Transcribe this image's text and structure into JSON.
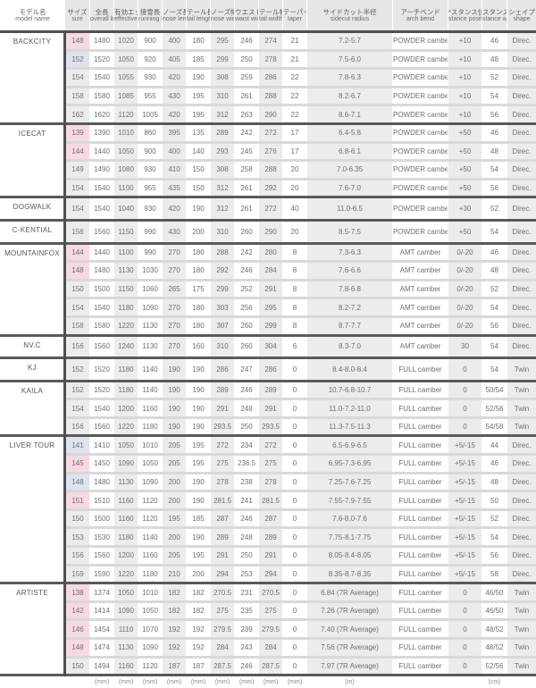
{
  "table": {
    "headers": [
      {
        "jp": "モデル名",
        "en": "model name"
      },
      {
        "jp": "サイズ",
        "en": "size"
      },
      {
        "jp": "全長",
        "en": "overall length"
      },
      {
        "jp": "有効エッジ",
        "en": "effective edge"
      },
      {
        "jp": "接雪長",
        "en": "running length"
      },
      {
        "jp": "ノーズ長",
        "en": "nose length"
      },
      {
        "jp": "テール長",
        "en": "tail length"
      },
      {
        "jp": "ノーズ幅",
        "en": "nose width"
      },
      {
        "jp": "ウエスト幅",
        "en": "waist width"
      },
      {
        "jp": "テール幅",
        "en": "tail width"
      },
      {
        "jp": "テーパー",
        "en": "taper"
      },
      {
        "jp": "サイドカット半径",
        "en": "sidecut radius"
      },
      {
        "jp": "アーチベンド",
        "en": "arch bend"
      },
      {
        "jp": "*スタンス位置",
        "en": "stance position"
      },
      {
        "jp": "スタンス幅",
        "en": "stance width"
      },
      {
        "jp": "シェイプ",
        "en": "shape"
      }
    ],
    "units": [
      "",
      "",
      "(mm)",
      "(mm)",
      "(mm)",
      "(mm)",
      "(mm)",
      "(mm)",
      "(mm)",
      "(mm)",
      "(mm)",
      "(m)",
      "",
      "",
      "(cm)",
      ""
    ],
    "colors": {
      "header_bg": "#e7e7e7",
      "shade_bg": "#ececec",
      "pink_highlight": "#f6d9e1",
      "blue_highlight": "#dde4f0",
      "section_line": "#5a5a5a",
      "row_line": "#d9d9d9"
    },
    "sections": [
      {
        "model": "BACKCITY",
        "rows": [
          {
            "size": "148",
            "highlight": "pink",
            "values": [
              "1480",
              "1020",
              "900",
              "400",
              "180",
              "295",
              "246",
              "274",
              "21",
              "7.2-5.7",
              "POWDER camber",
              "+10",
              "46",
              "Direc."
            ]
          },
          {
            "size": "152",
            "highlight": "blue",
            "values": [
              "1520",
              "1050",
              "920",
              "405",
              "185",
              "299",
              "250",
              "278",
              "21",
              "7.5-6.0",
              "POWDER camber",
              "+10",
              "48",
              "Direc."
            ]
          },
          {
            "size": "154",
            "highlight": "",
            "values": [
              "1540",
              "1055",
              "930",
              "420",
              "190",
              "308",
              "259",
              "286",
              "22",
              "7.8-6.3",
              "POWDER camber",
              "+10",
              "52",
              "Direc."
            ]
          },
          {
            "size": "158",
            "highlight": "",
            "values": [
              "1580",
              "1085",
              "955",
              "430",
              "195",
              "310",
              "261",
              "288",
              "22",
              "8.2-6.7",
              "POWDER camber",
              "+10",
              "54",
              "Direc."
            ]
          },
          {
            "size": "162",
            "highlight": "",
            "values": [
              "1620",
              "1120",
              "1005",
              "420",
              "195",
              "312",
              "263",
              "290",
              "22",
              "8.6-7.1",
              "POWDER camber",
              "+10",
              "56",
              "Direc."
            ]
          }
        ]
      },
      {
        "model": "ICECAT",
        "rows": [
          {
            "size": "139",
            "highlight": "pink",
            "values": [
              "1390",
              "1010",
              "860",
              "395",
              "135",
              "289",
              "242",
              "272",
              "17",
              "6.4-5.8",
              "POWDER camber",
              "+50",
              "46",
              "Direc."
            ]
          },
          {
            "size": "144",
            "highlight": "pink",
            "values": [
              "1440",
              "1050",
              "900",
              "400",
              "140",
              "293",
              "245",
              "276",
              "17",
              "6.8-6.1",
              "POWDER camber",
              "+50",
              "48",
              "Direc."
            ]
          },
          {
            "size": "149",
            "highlight": "",
            "values": [
              "1490",
              "1080",
              "930",
              "410",
              "150",
              "308",
              "258",
              "288",
              "20",
              "7.0-6.35",
              "POWDER camber",
              "+50",
              "54",
              "Direc."
            ]
          },
          {
            "size": "154",
            "highlight": "",
            "values": [
              "1540",
              "1100",
              "955",
              "435",
              "150",
              "312",
              "261",
              "292",
              "20",
              "7.6-7.0",
              "POWDER camber",
              "+50",
              "56",
              "Direc."
            ]
          }
        ]
      },
      {
        "model": "DOGWALK",
        "rows": [
          {
            "size": "154",
            "highlight": "",
            "values": [
              "1540",
              "1040",
              "930",
              "420",
              "190",
              "312",
              "261",
              "272",
              "40",
              "11.0-6.5",
              "POWDER camber",
              "+30",
              "52",
              "Direc."
            ]
          }
        ]
      },
      {
        "model": "C-KENTIAL",
        "rows": [
          {
            "size": "156",
            "highlight": "",
            "values": [
              "1560",
              "1150",
              "990",
              "430",
              "200",
              "310",
              "260",
              "290",
              "20",
              "8.5-7.5",
              "POWDER camber",
              "+50",
              "54",
              "Direc."
            ]
          }
        ]
      },
      {
        "model": "MOUNTAINFOX",
        "rows": [
          {
            "size": "144",
            "highlight": "pink",
            "values": [
              "1440",
              "1100",
              "990",
              "270",
              "180",
              "288",
              "242",
              "280",
              "8",
              "7.3-6.3",
              "AMT camber",
              "0/-20",
              "46",
              "Direc."
            ]
          },
          {
            "size": "148",
            "highlight": "pink",
            "values": [
              "1480",
              "1130",
              "1030",
              "270",
              "180",
              "292",
              "246",
              "284",
              "8",
              "7.6-6.6",
              "AMT camber",
              "0/-20",
              "48",
              "Direc."
            ]
          },
          {
            "size": "150",
            "highlight": "",
            "values": [
              "1500",
              "1150",
              "1060",
              "265",
              "175",
              "299",
              "252",
              "291",
              "8",
              "7.8-6.8",
              "AMT camber",
              "0/-20",
              "52",
              "Direc."
            ]
          },
          {
            "size": "154",
            "highlight": "",
            "values": [
              "1540",
              "1180",
              "1090",
              "270",
              "180",
              "303",
              "256",
              "295",
              "8",
              "8.2-7.2",
              "AMT camber",
              "0/-20",
              "54",
              "Direc."
            ]
          },
          {
            "size": "158",
            "highlight": "",
            "values": [
              "1580",
              "1220",
              "1130",
              "270",
              "180",
              "307",
              "260",
              "299",
              "8",
              "8.7-7.7",
              "AMT camber",
              "0/-20",
              "56",
              "Direc."
            ]
          }
        ]
      },
      {
        "model": "NV.C",
        "rows": [
          {
            "size": "156",
            "highlight": "",
            "values": [
              "1560",
              "1240",
              "1130",
              "270",
              "160",
              "310",
              "260",
              "304",
              "6",
              "8.3-7.0",
              "AMT camber",
              "30",
              "54",
              "Direc."
            ]
          }
        ]
      },
      {
        "model": "KJ",
        "rows": [
          {
            "size": "152",
            "highlight": "",
            "values": [
              "1520",
              "1180",
              "1140",
              "190",
              "190",
              "286",
              "247",
              "286",
              "0",
              "8.4-8.0-8.4",
              "FULL camber",
              "0",
              "54",
              "Twin"
            ]
          }
        ]
      },
      {
        "model": "KAILA",
        "rows": [
          {
            "size": "152",
            "highlight": "",
            "values": [
              "1520",
              "1180",
              "1140",
              "190",
              "190",
              "289",
              "246",
              "289",
              "0",
              "10.7-6.8-10.7",
              "FULL camber",
              "0",
              "50/54",
              "Twin"
            ]
          },
          {
            "size": "154",
            "highlight": "",
            "values": [
              "1540",
              "1200",
              "1160",
              "190",
              "190",
              "291",
              "248",
              "291",
              "0",
              "11.0-7.2-11.0",
              "FULL camber",
              "0",
              "52/56",
              "Twin"
            ]
          },
          {
            "size": "156",
            "highlight": "",
            "values": [
              "1560",
              "1220",
              "1180",
              "190",
              "190",
              "293.5",
              "250",
              "293.5",
              "0",
              "11.3-7.5-11.3",
              "FULL camber",
              "0",
              "54/58",
              "Twin"
            ]
          }
        ]
      },
      {
        "model": "LIVER TOUR",
        "rows": [
          {
            "size": "141",
            "highlight": "blue",
            "values": [
              "1410",
              "1050",
              "1010",
              "205",
              "195",
              "272",
              "234",
              "272",
              "0",
              "6.5-6.9-6.5",
              "FULL camber",
              "+5/-15",
              "44",
              "Direc."
            ]
          },
          {
            "size": "145",
            "highlight": "pink",
            "values": [
              "1450",
              "1090",
              "1050",
              "205",
              "195",
              "275",
              "236.5",
              "275",
              "0",
              "6.95-7.3-6.95",
              "FULL camber",
              "+5/-15",
              "46",
              "Direc."
            ]
          },
          {
            "size": "148",
            "highlight": "blue",
            "values": [
              "1480",
              "1130",
              "1090",
              "200",
              "190",
              "278",
              "238",
              "278",
              "0",
              "7.25-7.6-7.25",
              "FULL camber",
              "+5/-15",
              "48",
              "Direc."
            ]
          },
          {
            "size": "151",
            "highlight": "pink",
            "values": [
              "1510",
              "1160",
              "1120",
              "200",
              "190",
              "281.5",
              "241",
              "281.5",
              "0",
              "7.55-7.9-7.55",
              "FULL camber",
              "+5/-15",
              "50",
              "Direc."
            ]
          },
          {
            "size": "150",
            "highlight": "",
            "values": [
              "1500",
              "1160",
              "1120",
              "195",
              "185",
              "287",
              "246",
              "287",
              "0",
              "7.6-8.0-7.6",
              "FULL camber",
              "+5/-15",
              "52",
              "Direc."
            ]
          },
          {
            "size": "153",
            "highlight": "",
            "values": [
              "1530",
              "1180",
              "1140",
              "200",
              "190",
              "289",
              "248",
              "289",
              "0",
              "7.75-8.1-7.75",
              "FULL camber",
              "+5/-15",
              "54",
              "Direc."
            ]
          },
          {
            "size": "156",
            "highlight": "",
            "values": [
              "1560",
              "1200",
              "1160",
              "205",
              "195",
              "291",
              "250",
              "291",
              "0",
              "8.05-8.4-8.05",
              "FULL camber",
              "+5/-15",
              "56",
              "Direc."
            ]
          },
          {
            "size": "159",
            "highlight": "",
            "values": [
              "1590",
              "1220",
              "1180",
              "210",
              "200",
              "294",
              "253",
              "294",
              "0",
              "8.35-8.7-8.35",
              "FULL camber",
              "+5/-15",
              "58",
              "Direc."
            ]
          }
        ]
      },
      {
        "model": "ARTISTE",
        "rows": [
          {
            "size": "138",
            "highlight": "pink",
            "values": [
              "1374",
              "1050",
              "1010",
              "182",
              "182",
              "270.5",
              "231",
              "270.5",
              "0",
              "6.84 (7R Average)",
              "FULL camber",
              "0",
              "46/50",
              "Twin"
            ]
          },
          {
            "size": "142",
            "highlight": "pink",
            "values": [
              "1414",
              "1090",
              "1050",
              "182",
              "182",
              "275",
              "235",
              "275",
              "0",
              "7.26 (7R Average)",
              "FULL camber",
              "0",
              "46/50",
              "Twin"
            ]
          },
          {
            "size": "146",
            "highlight": "pink",
            "values": [
              "1454",
              "1110",
              "1070",
              "192",
              "192",
              "279.5",
              "239",
              "279.5",
              "0",
              "7.40 (7R Average)",
              "FULL camber",
              "0",
              "48/52",
              "Twin"
            ]
          },
          {
            "size": "148",
            "highlight": "pink",
            "values": [
              "1474",
              "1130",
              "1090",
              "192",
              "192",
              "284",
              "243",
              "284",
              "0",
              "7.56 (7R Average)",
              "FULL camber",
              "0",
              "48/52",
              "Twin"
            ]
          },
          {
            "size": "150",
            "highlight": "",
            "values": [
              "1494",
              "1160",
              "1120",
              "187",
              "187",
              "287.5",
              "246",
              "287.5",
              "0",
              "7.97 (7R Average)",
              "FULL camber",
              "0",
              "52/56",
              "Twin"
            ]
          }
        ]
      }
    ]
  }
}
